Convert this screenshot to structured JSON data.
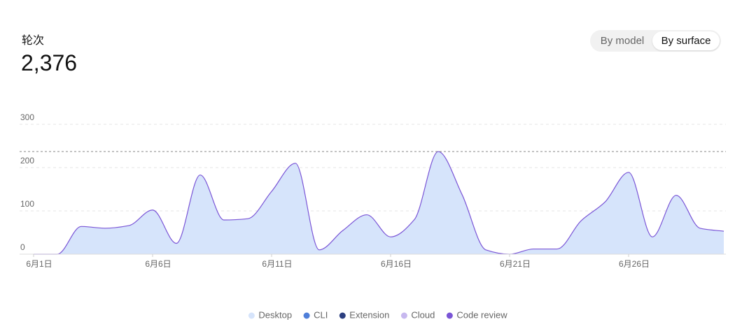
{
  "chart_data": {
    "type": "area",
    "stacked": true,
    "title": "轮次",
    "subtitle": "2,376",
    "categories": [
      "6月1日",
      null,
      null,
      null,
      null,
      "6月6日",
      null,
      null,
      null,
      null,
      "6月11日",
      null,
      null,
      null,
      null,
      "6月16日",
      null,
      null,
      null,
      null,
      "6月21日",
      null,
      null,
      null,
      null,
      "6月26日",
      null,
      null,
      null,
      null
    ],
    "series": [
      {
        "name": "Desktop",
        "color": "#d6e4fb",
        "values": [
          0,
          0,
          64,
          60,
          66,
          102,
          25,
          183,
          79,
          82,
          145,
          210,
          10,
          55,
          91,
          40,
          80,
          237,
          138,
          10,
          0,
          12,
          12,
          77,
          120,
          189,
          40,
          136,
          60,
          53
        ]
      },
      {
        "name": "CLI",
        "color": "#4f7fd9",
        "values": [
          0,
          0,
          0,
          0,
          0,
          0,
          0,
          0,
          0,
          0,
          0,
          0,
          0,
          0,
          0,
          0,
          0,
          0,
          0,
          0,
          0,
          0,
          0,
          0,
          0,
          0,
          0,
          0,
          0,
          0
        ]
      },
      {
        "name": "Extension",
        "color": "#2c3f80",
        "values": [
          0,
          0,
          0,
          0,
          0,
          0,
          0,
          0,
          0,
          0,
          0,
          0,
          0,
          0,
          0,
          0,
          0,
          0,
          0,
          0,
          0,
          0,
          0,
          0,
          0,
          0,
          0,
          0,
          0,
          0
        ]
      },
      {
        "name": "Cloud",
        "color": "#c7b8ef",
        "values": [
          0,
          0,
          0,
          0,
          0,
          0,
          0,
          0,
          0,
          0,
          0,
          0,
          0,
          0,
          0,
          0,
          0,
          0,
          0,
          0,
          0,
          0,
          0,
          0,
          0,
          0,
          0,
          0,
          0,
          0
        ]
      },
      {
        "name": "Code review",
        "color": "#7a55d6",
        "values": [
          0,
          0,
          0,
          0,
          0,
          0,
          0,
          0,
          0,
          0,
          0,
          0,
          0,
          0,
          0,
          0,
          0,
          0,
          0,
          0,
          0,
          0,
          0,
          0,
          0,
          0,
          0,
          0,
          0,
          0
        ]
      }
    ],
    "reference_line": 237,
    "ylim": [
      0,
      300
    ],
    "yticks": [
      0,
      100,
      200,
      300
    ],
    "grid": true,
    "legend": "bottom"
  },
  "controls": {
    "options": [
      "By model",
      "By surface"
    ],
    "selected_index": 1
  }
}
